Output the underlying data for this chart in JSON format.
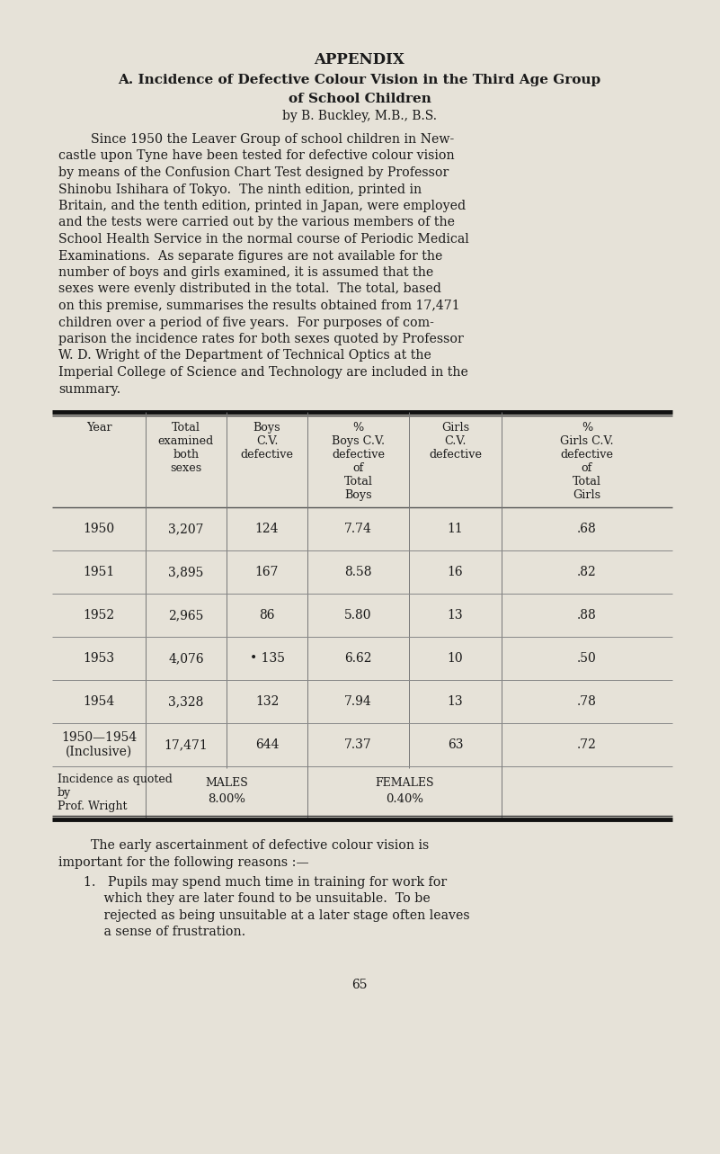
{
  "bg_color": "#e6e2d8",
  "text_color": "#1a1a1a",
  "title1": "APPENDIX",
  "title2": "A. Incidence of Defective Colour Vision in the Third Age Group",
  "title3": "of School Children",
  "title4": "by B. Buckley, M.B., B.S.",
  "para_lines": [
    "        Since 1950 the Leaver Group of school children in New-",
    "castle upon Tyne have been tested for defective colour vision",
    "by means of the Confusion Chart Test designed by Professor",
    "Shinobu Ishihara of Tokyo.  The ninth edition, printed in",
    "Britain, and the tenth edition, printed in Japan, were employed",
    "and the tests were carried out by the various members of the",
    "School Health Service in the normal course of Periodic Medical",
    "Examinations.  As separate figures are not available for the",
    "number of boys and girls examined, it is assumed that the",
    "sexes were evenly distributed in the total.  The total, based",
    "on this premise, summarises the results obtained from 17,471",
    "children over a period of five years.  For purposes of com-",
    "parison the incidence rates for both sexes quoted by Professor",
    "W. D. Wright of the Department of Technical Optics at the",
    "Imperial College of Science and Technology are included in the",
    "summary."
  ],
  "table_col_headers": [
    "Year",
    "Total\nexamined\nboth\nsexes",
    "Boys\nC.V.\ndefective",
    "%\nBoys C.V.\ndefective\nof\nTotal\nBoys",
    "Girls\nC.V.\ndefective",
    "%\nGirls C.V.\ndefective\nof\nTotal\nGirls"
  ],
  "table_data": [
    [
      "1950",
      "3,207",
      "124",
      "7.74",
      "11",
      ".68"
    ],
    [
      "1951",
      "3,895",
      "167",
      "8.58",
      "16",
      ".82"
    ],
    [
      "1952",
      "2,965",
      "86",
      "5.80",
      "13",
      ".88"
    ],
    [
      "1953",
      "4,076",
      "• 135",
      "6.62",
      "10",
      ".50"
    ],
    [
      "1954",
      "3,328",
      "132",
      "7.94",
      "13",
      ".78"
    ],
    [
      "1950—1954\n(Inclusive)",
      "17,471",
      "644",
      "7.37",
      "63",
      ".72"
    ]
  ],
  "footer_left": "Incidence as quoted\nby\nProf. Wright",
  "footer_males_label": "Males",
  "footer_males_val": "8.00%",
  "footer_females_label": "Females",
  "footer_females_val": "0.40%",
  "closing_para_lines": [
    "        The early ascertainment of defective colour vision is",
    "important for the following reasons :—"
  ],
  "list_item1_lines": [
    "    1.   Pupils may spend much time in training for work for",
    "         which they are later found to be unsuitable.  To be",
    "         rejected as being unsuitable at a later stage often leaves",
    "         a sense of frustration."
  ],
  "page_number": "65"
}
